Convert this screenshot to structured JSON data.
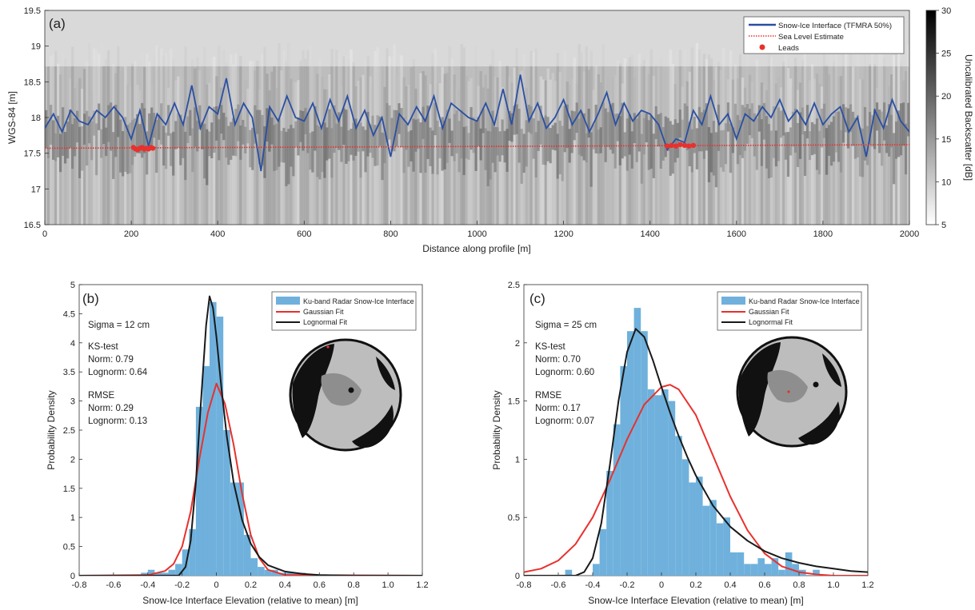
{
  "chart_data": [
    {
      "panel": "(a)",
      "type": "line",
      "ylabel": "WGS-84 [m]",
      "xlabel": "Distance along profile [m]",
      "xlim": [
        0,
        2000
      ],
      "ylim": [
        16.5,
        19.5
      ],
      "xticks": [
        0,
        200,
        400,
        600,
        800,
        1000,
        1200,
        1400,
        1600,
        1800,
        2000
      ],
      "yticks": [
        16.5,
        17,
        17.5,
        18,
        18.5,
        19,
        19.5
      ],
      "background": "radargram (uncalibrated backscatter image)",
      "colorbar": {
        "label": "Uncalibrated Backscatter [dB]",
        "min": 5,
        "max": 30,
        "ticks": [
          5,
          10,
          15,
          20,
          25,
          30
        ]
      },
      "legend": [
        "Snow-Ice Interface (TFMRA 50%)",
        "Sea Level Estimate",
        "Leads"
      ],
      "legend_position": "top-right",
      "series": [
        {
          "name": "Snow-Ice Interface (TFMRA 50%)",
          "color": "#2a4fa3",
          "x": [
            0,
            20,
            40,
            60,
            80,
            100,
            120,
            140,
            160,
            180,
            200,
            220,
            240,
            260,
            280,
            300,
            320,
            340,
            360,
            380,
            400,
            420,
            440,
            460,
            480,
            500,
            520,
            540,
            560,
            580,
            600,
            620,
            640,
            660,
            680,
            700,
            720,
            740,
            760,
            780,
            800,
            820,
            840,
            860,
            880,
            900,
            920,
            940,
            960,
            980,
            1000,
            1020,
            1040,
            1060,
            1080,
            1100,
            1120,
            1140,
            1160,
            1180,
            1200,
            1220,
            1240,
            1260,
            1280,
            1300,
            1320,
            1340,
            1360,
            1380,
            1400,
            1420,
            1440,
            1460,
            1480,
            1500,
            1520,
            1540,
            1560,
            1580,
            1600,
            1620,
            1640,
            1660,
            1680,
            1700,
            1720,
            1740,
            1760,
            1780,
            1800,
            1820,
            1840,
            1860,
            1880,
            1900,
            1920,
            1940,
            1960,
            1980,
            2000
          ],
          "y": [
            17.85,
            18.05,
            17.8,
            18.1,
            17.95,
            17.9,
            18.1,
            18.0,
            18.15,
            18.0,
            17.7,
            18.1,
            17.6,
            18.05,
            17.9,
            18.2,
            17.9,
            18.45,
            17.85,
            18.15,
            18.05,
            18.55,
            17.9,
            18.2,
            18.0,
            17.25,
            18.15,
            17.95,
            18.3,
            18.0,
            17.95,
            18.2,
            17.85,
            18.25,
            17.95,
            18.3,
            17.85,
            18.1,
            17.75,
            18.0,
            17.45,
            18.05,
            17.9,
            18.15,
            17.95,
            18.3,
            17.85,
            18.2,
            18.1,
            18.0,
            17.95,
            18.2,
            17.9,
            18.4,
            17.9,
            18.6,
            17.95,
            18.2,
            17.85,
            18.0,
            18.25,
            17.9,
            18.1,
            17.8,
            18.05,
            18.35,
            17.9,
            18.2,
            17.95,
            18.1,
            18.05,
            17.9,
            17.55,
            17.7,
            17.65,
            18.1,
            17.9,
            18.3,
            17.9,
            18.05,
            17.7,
            18.05,
            17.95,
            18.15,
            18.0,
            18.25,
            17.95,
            18.1,
            17.9,
            18.2,
            17.9,
            18.05,
            18.15,
            17.8,
            18.0,
            17.45,
            18.1,
            17.85,
            18.25,
            17.95,
            17.8
          ]
        },
        {
          "name": "Sea Level Estimate",
          "color": "#e8312d",
          "style": "dotted",
          "x": [
            0,
            2000
          ],
          "y": [
            17.57,
            17.62
          ]
        },
        {
          "name": "Leads",
          "color": "#e8312d",
          "style": "markers",
          "x": [
            205,
            210,
            215,
            220,
            225,
            230,
            235,
            240,
            245,
            250,
            1440,
            1450,
            1460,
            1470,
            1480,
            1490,
            1500
          ],
          "y": [
            17.58,
            17.56,
            17.55,
            17.57,
            17.58,
            17.56,
            17.57,
            17.56,
            17.58,
            17.57,
            17.6,
            17.61,
            17.6,
            17.62,
            17.61,
            17.6,
            17.61
          ]
        }
      ]
    },
    {
      "panel": "(b)",
      "type": "bar",
      "ylabel": "Probability Density",
      "xlabel": "Snow-Ice Interface Elevation (relative to mean) [m]",
      "xlim": [
        -0.8,
        1.2
      ],
      "ylim": [
        0,
        5
      ],
      "xticks": [
        -0.8,
        -0.6,
        -0.4,
        -0.2,
        0,
        0.2,
        0.4,
        0.6,
        0.8,
        1.0,
        1.2
      ],
      "xtick_labels": [
        "-0.8",
        "-0.6",
        "-0.4",
        "-0.2",
        "0",
        "0.2",
        "0.4",
        "0.6",
        "0.8",
        "1.0",
        "1.2"
      ],
      "yticks": [
        0,
        0.5,
        1,
        1.5,
        2,
        2.5,
        3,
        3.5,
        4,
        4.5,
        5
      ],
      "annotations": [
        "Sigma = 12 cm",
        "KS-test",
        "Norm: 0.79",
        "Lognorm: 0.64",
        "RMSE",
        "Norm: 0.29",
        "Lognorm: 0.13"
      ],
      "legend": [
        "Ku-band Radar Snow-Ice Interface",
        "Gaussian Fit",
        "Lognormal Fit"
      ],
      "legend_position": "top-right",
      "histogram": {
        "name": "Ku-band Radar Snow-Ice Interface",
        "color": "#6fb1dc",
        "bin_width": 0.04,
        "bin_starts": [
          -0.44,
          -0.4,
          -0.36,
          -0.32,
          -0.28,
          -0.24,
          -0.2,
          -0.16,
          -0.12,
          -0.08,
          -0.04,
          0.0,
          0.04,
          0.08,
          0.12,
          0.16,
          0.2,
          0.24,
          0.28,
          0.32,
          0.36,
          0.4,
          0.44,
          0.48
        ],
        "values": [
          0.05,
          0.1,
          0.05,
          0.05,
          0.1,
          0.2,
          0.45,
          0.8,
          2.9,
          3.6,
          4.7,
          4.45,
          2.5,
          1.6,
          1.6,
          0.7,
          0.3,
          0.15,
          0.1,
          0.1,
          0.05,
          0.05,
          0.05,
          0.05
        ]
      },
      "series": [
        {
          "name": "Gaussian Fit",
          "color": "#e8312d",
          "x": [
            -0.8,
            -0.4,
            -0.3,
            -0.25,
            -0.2,
            -0.15,
            -0.1,
            -0.05,
            0,
            0.05,
            0.1,
            0.15,
            0.2,
            0.25,
            0.3,
            0.4,
            1.2
          ],
          "y": [
            0,
            0.01,
            0.08,
            0.2,
            0.5,
            1.1,
            2.0,
            2.8,
            3.3,
            2.95,
            2.25,
            1.4,
            0.7,
            0.3,
            0.1,
            0.01,
            0
          ]
        },
        {
          "name": "Lognormal Fit",
          "color": "#1a1a1a",
          "x": [
            -0.8,
            -0.22,
            -0.18,
            -0.15,
            -0.12,
            -0.09,
            -0.06,
            -0.04,
            -0.02,
            0,
            0.03,
            0.06,
            0.1,
            0.15,
            0.2,
            0.25,
            0.3,
            0.4,
            0.5,
            0.6,
            0.8,
            1.2
          ],
          "y": [
            0,
            0,
            0.15,
            0.6,
            1.6,
            3.0,
            4.3,
            4.8,
            4.6,
            4.1,
            3.2,
            2.4,
            1.6,
            0.95,
            0.55,
            0.32,
            0.18,
            0.07,
            0.03,
            0.01,
            0,
            0
          ]
        }
      ]
    },
    {
      "panel": "(c)",
      "type": "bar",
      "ylabel": "Probability Density",
      "xlabel": "Snow-Ice Interface Elevation (relative to mean) [m]",
      "xlim": [
        -0.8,
        1.2
      ],
      "ylim": [
        0,
        2.5
      ],
      "xticks": [
        -0.8,
        -0.6,
        -0.4,
        -0.2,
        0,
        0.2,
        0.4,
        0.6,
        0.8,
        1.0,
        1.2
      ],
      "xtick_labels": [
        "-0.8",
        "-0.6",
        "-0.4",
        "-0.2",
        "0",
        "0.2",
        "0.4",
        "0.6",
        "0.8",
        "1.0",
        "1.2"
      ],
      "yticks": [
        0,
        0.5,
        1,
        1.5,
        2,
        2.5
      ],
      "annotations": [
        "Sigma = 25 cm",
        "KS-test",
        "Norm: 0.70",
        "Lognorm: 0.60",
        "RMSE",
        "Norm: 0.17",
        "Lognorm: 0.07"
      ],
      "legend": [
        "Ku-band Radar Snow-Ice Interface",
        "Gaussian Fit",
        "Lognormal Fit"
      ],
      "legend_position": "top-right",
      "histogram": {
        "name": "Ku-band Radar Snow-Ice Interface",
        "color": "#6fb1dc",
        "bin_width": 0.04,
        "bin_starts": [
          -0.56,
          -0.52,
          -0.48,
          -0.44,
          -0.4,
          -0.36,
          -0.32,
          -0.28,
          -0.24,
          -0.2,
          -0.16,
          -0.12,
          -0.08,
          -0.04,
          0.0,
          0.04,
          0.08,
          0.12,
          0.16,
          0.2,
          0.24,
          0.28,
          0.32,
          0.36,
          0.4,
          0.44,
          0.48,
          0.52,
          0.56,
          0.6,
          0.64,
          0.68,
          0.72,
          0.76,
          0.8,
          0.84,
          0.88
        ],
        "values": [
          0.05,
          0.0,
          0.0,
          0.0,
          0.1,
          0.4,
          0.9,
          1.3,
          1.8,
          2.1,
          2.3,
          2.1,
          1.6,
          1.55,
          1.6,
          1.5,
          1.2,
          1.0,
          0.8,
          0.85,
          0.6,
          0.65,
          0.45,
          0.5,
          0.2,
          0.2,
          0.1,
          0.1,
          0.15,
          0.1,
          0.15,
          0.05,
          0.2,
          0.1,
          0.05,
          0.0,
          0.05
        ]
      },
      "series": [
        {
          "name": "Gaussian Fit",
          "color": "#e8312d",
          "x": [
            -0.8,
            -0.7,
            -0.6,
            -0.5,
            -0.4,
            -0.3,
            -0.2,
            -0.1,
            0,
            0.05,
            0.1,
            0.2,
            0.3,
            0.4,
            0.5,
            0.6,
            0.7,
            0.8,
            0.9,
            1.0,
            1.2
          ],
          "y": [
            0.03,
            0.06,
            0.13,
            0.27,
            0.5,
            0.82,
            1.17,
            1.47,
            1.62,
            1.64,
            1.6,
            1.38,
            1.03,
            0.68,
            0.39,
            0.19,
            0.08,
            0.03,
            0.01,
            0.0,
            0.0
          ]
        },
        {
          "name": "Lognormal Fit",
          "color": "#1a1a1a",
          "x": [
            -0.8,
            -0.5,
            -0.45,
            -0.4,
            -0.35,
            -0.3,
            -0.25,
            -0.2,
            -0.15,
            -0.1,
            -0.05,
            0,
            0.05,
            0.1,
            0.15,
            0.2,
            0.3,
            0.4,
            0.5,
            0.6,
            0.7,
            0.8,
            0.9,
            1.0,
            1.1,
            1.2
          ],
          "y": [
            0,
            0,
            0.03,
            0.15,
            0.45,
            0.95,
            1.5,
            1.92,
            2.12,
            2.05,
            1.85,
            1.62,
            1.4,
            1.2,
            1.02,
            0.86,
            0.6,
            0.42,
            0.3,
            0.21,
            0.15,
            0.11,
            0.08,
            0.06,
            0.04,
            0.03
          ]
        }
      ]
    }
  ]
}
